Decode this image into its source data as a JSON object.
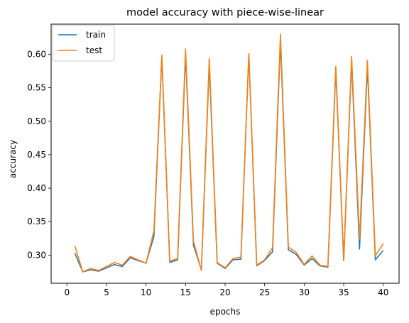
{
  "chart_data": {
    "type": "line",
    "title": "model accuracy with piece-wise-linear",
    "xlabel": "epochs",
    "ylabel": "accuracy",
    "xlim": [
      -2,
      42
    ],
    "ylim": [
      0.258,
      0.645
    ],
    "xticks": [
      0,
      5,
      10,
      15,
      20,
      25,
      30,
      35,
      40
    ],
    "yticks": [
      0.3,
      0.35,
      0.4,
      0.45,
      0.5,
      0.55,
      0.6
    ],
    "ytick_labels": [
      "0.30",
      "0.35",
      "0.40",
      "0.45",
      "0.50",
      "0.55",
      "0.60"
    ],
    "legend_position": "top-left",
    "grid": false,
    "x": [
      1,
      2,
      3,
      4,
      5,
      6,
      7,
      8,
      9,
      10,
      11,
      12,
      13,
      14,
      15,
      16,
      17,
      18,
      19,
      20,
      21,
      22,
      23,
      24,
      25,
      26,
      27,
      28,
      29,
      30,
      31,
      32,
      33,
      34,
      35,
      36,
      37,
      38,
      39,
      40
    ],
    "series": [
      {
        "name": "train",
        "color": "#1f77b4",
        "values": [
          0.303,
          0.275,
          0.278,
          0.276,
          0.281,
          0.286,
          0.283,
          0.296,
          0.292,
          0.288,
          0.328,
          0.596,
          0.289,
          0.293,
          0.6,
          0.315,
          0.278,
          0.585,
          0.288,
          0.28,
          0.293,
          0.294,
          0.6,
          0.284,
          0.292,
          0.305,
          0.62,
          0.308,
          0.301,
          0.285,
          0.295,
          0.284,
          0.282,
          0.577,
          0.292,
          0.59,
          0.309,
          0.582,
          0.293,
          0.307
        ]
      },
      {
        "name": "test",
        "color": "#ff7f0e",
        "values": [
          0.314,
          0.275,
          0.28,
          0.277,
          0.283,
          0.289,
          0.285,
          0.298,
          0.293,
          0.288,
          0.336,
          0.599,
          0.291,
          0.295,
          0.608,
          0.321,
          0.277,
          0.594,
          0.289,
          0.281,
          0.295,
          0.297,
          0.601,
          0.285,
          0.293,
          0.311,
          0.63,
          0.312,
          0.304,
          0.286,
          0.299,
          0.285,
          0.283,
          0.582,
          0.292,
          0.597,
          0.324,
          0.591,
          0.299,
          0.317
        ]
      }
    ]
  }
}
